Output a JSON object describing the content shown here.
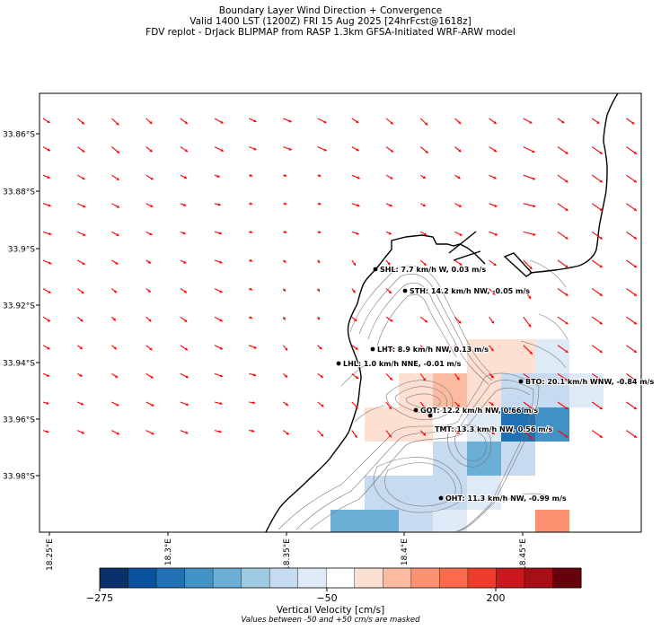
{
  "title": {
    "line1": "Boundary Layer Wind Direction + Convergence",
    "line2": "Valid 1400 LST (1200Z) FRI 15 Aug 2025 [24hrFcst@1618z]",
    "line3": "FDV replot - DrJack BLIPMAP from RASP 1.3km GFSA-Initiated WRF-ARW model"
  },
  "lat_ticks": [
    "33.86°S",
    "33.88°S",
    "33.9°S",
    "33.92°S",
    "33.94°S",
    "33.96°S",
    "33.98°S"
  ],
  "lon_ticks": [
    "18.25°E",
    "18.3°E",
    "18.35°E",
    "18.4°E",
    "18.45°E"
  ],
  "stations": [
    {
      "label": "SHL: 7.7 km/h W, 0.03 m/s"
    },
    {
      "label": "STH: 14.2 km/h NW, -0.05 m/s"
    },
    {
      "label": "LHT: 8.9 km/h NW, 0.13 m/s"
    },
    {
      "label": "LHL: 1.0 km/h NNE, -0.01 m/s"
    },
    {
      "label": "BTO: 20.1 km/h WNW, -0.84 m/s"
    },
    {
      "label": "GOT: 12.2 km/h NW, 0.66 m/s"
    },
    {
      "label": "TMT: 13.3 km/h NW, 0.56 m/s"
    },
    {
      "label": "OHT: 11.3 km/h NW, -0.99 m/s"
    }
  ],
  "colorbar": {
    "title": "Vertical Velocity [cm/s]",
    "note": "Values between -50 and +50 cm/s are masked",
    "ticks": [
      "−275",
      "−50",
      "200"
    ],
    "colors": [
      "#08306b",
      "#08519c",
      "#2171b5",
      "#4292c6",
      "#6baed6",
      "#9ecae1",
      "#c6dbef",
      "#deebf7",
      "#ffffff",
      "#fee0d2",
      "#fcbba1",
      "#fc9272",
      "#fb6a4a",
      "#ef3b2c",
      "#cb181d",
      "#a50f15",
      "#67000d"
    ]
  },
  "colors": {
    "arrow": "#ff0000",
    "coast": "#000000",
    "contour": "#777777"
  }
}
